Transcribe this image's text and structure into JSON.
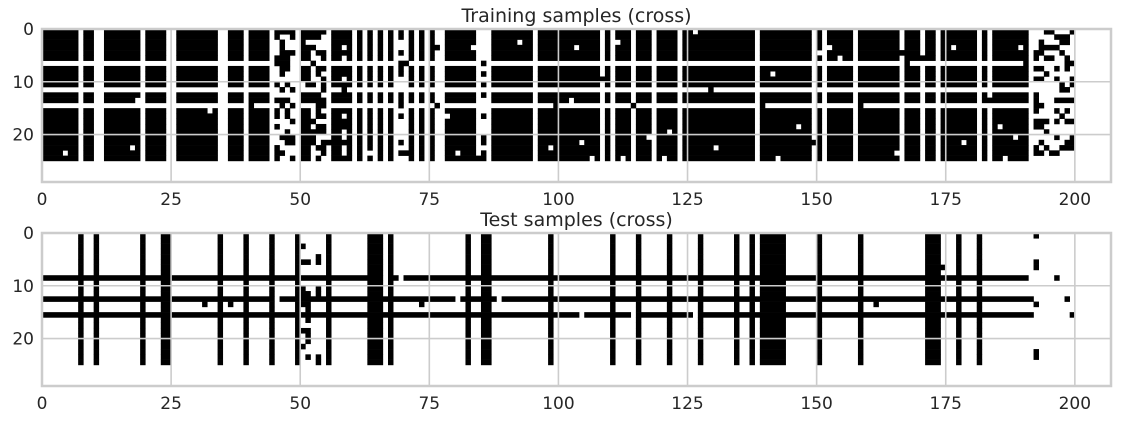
{
  "chart_data": [
    {
      "type": "heatmap",
      "title": "Training samples (cross)",
      "xlabel": "",
      "ylabel": "",
      "xlim": [
        0,
        207
      ],
      "ylim": [
        29,
        0
      ],
      "xticks": [
        0,
        25,
        50,
        75,
        100,
        125,
        150,
        175,
        200
      ],
      "yticks": [
        0,
        10,
        20
      ],
      "grid": true,
      "colormap": "binary",
      "description_rows": [
        0,
        24
      ],
      "white_columns": [
        7,
        10,
        11,
        19,
        24,
        25,
        34,
        35,
        39,
        44,
        49,
        55,
        60,
        62,
        64,
        66,
        68,
        70,
        72,
        74,
        76,
        77,
        84,
        86,
        95,
        108,
        110,
        114,
        118,
        123,
        138,
        149,
        151,
        157,
        166,
        170,
        173,
        181,
        183,
        191
      ],
      "white_rows": [
        6,
        11,
        14
      ],
      "black_rows": [],
      "sparse_columns": [
        45,
        46,
        47,
        48,
        52,
        53,
        54,
        58,
        69,
        85
      ],
      "column_values": [],
      "noise_points": [
        [
          4,
          23
        ],
        [
          17,
          22
        ],
        [
          18,
          13
        ],
        [
          32,
          15
        ],
        [
          40,
          14
        ],
        [
          46,
          4
        ],
        [
          47,
          7
        ],
        [
          50,
          10
        ],
        [
          51,
          2
        ],
        [
          55,
          21
        ],
        [
          63,
          23
        ],
        [
          69,
          20
        ],
        [
          70,
          6
        ],
        [
          70,
          23
        ],
        [
          76,
          3
        ],
        [
          76,
          14
        ],
        [
          78,
          16
        ],
        [
          80,
          23
        ],
        [
          83,
          3
        ],
        [
          84,
          24
        ],
        [
          92,
          2
        ],
        [
          98,
          22
        ],
        [
          99,
          14
        ],
        [
          102,
          13
        ],
        [
          103,
          3
        ],
        [
          104,
          21
        ],
        [
          106,
          24
        ],
        [
          108,
          9
        ],
        [
          111,
          2
        ],
        [
          112,
          24
        ],
        [
          114,
          14
        ],
        [
          117,
          20
        ],
        [
          120,
          24
        ],
        [
          121,
          19
        ],
        [
          126,
          0
        ],
        [
          129,
          11
        ],
        [
          130,
          22
        ],
        [
          139,
          14
        ],
        [
          141,
          8
        ],
        [
          142,
          24
        ],
        [
          146,
          18
        ],
        [
          149,
          21
        ],
        [
          150,
          4
        ],
        [
          152,
          3
        ],
        [
          154,
          5
        ],
        [
          158,
          14
        ],
        [
          165,
          23
        ],
        [
          166,
          4
        ],
        [
          167,
          6
        ],
        [
          170,
          5
        ],
        [
          176,
          3
        ],
        [
          178,
          21
        ],
        [
          183,
          13
        ],
        [
          185,
          18
        ],
        [
          186,
          24
        ],
        [
          188,
          20
        ],
        [
          189,
          3
        ],
        [
          190,
          6
        ]
      ],
      "right_region": {
        "x_range": [
          192,
          200
        ],
        "rows": [
          0,
          24
        ],
        "density": "sparse"
      },
      "color_scale": {
        "0": "#ffffff",
        "1": "#000000"
      }
    },
    {
      "type": "heatmap",
      "title": "Test samples (cross)",
      "xlabel": "",
      "ylabel": "",
      "xlim": [
        0,
        207
      ],
      "ylim": [
        29,
        0
      ],
      "xticks": [
        0,
        25,
        50,
        75,
        100,
        125,
        150,
        175,
        200
      ],
      "yticks": [
        0,
        10,
        20
      ],
      "grid": true,
      "colormap": "binary",
      "description_rows": [
        0,
        24
      ],
      "black_columns": [
        7,
        10,
        19,
        23,
        24,
        34,
        39,
        44,
        49,
        55,
        63,
        64,
        65,
        67,
        82,
        85,
        86,
        98,
        110,
        115,
        121,
        127,
        134,
        137,
        139,
        140,
        141,
        142,
        143,
        150,
        158,
        171,
        172,
        173,
        177,
        181
      ],
      "black_rows": [
        8,
        12,
        15
      ],
      "row_extent": [
        0,
        191
      ],
      "sparse_columns": [
        50,
        51,
        53
      ],
      "noise_points": [
        [
          31,
          13
        ],
        [
          36,
          13
        ],
        [
          45,
          12
        ],
        [
          66,
          8
        ],
        [
          69,
          8
        ],
        [
          73,
          13
        ],
        [
          80,
          12
        ],
        [
          88,
          12
        ],
        [
          104,
          15
        ],
        [
          114,
          15
        ],
        [
          126,
          15
        ],
        [
          161,
          13
        ],
        [
          174,
          6
        ],
        [
          191,
          8
        ],
        [
          192,
          0
        ],
        [
          192,
          5
        ],
        [
          192,
          6
        ],
        [
          192,
          13
        ],
        [
          192,
          22
        ],
        [
          192,
          23
        ],
        [
          196,
          8
        ],
        [
          198,
          12
        ],
        [
          199,
          15
        ]
      ],
      "color_scale": {
        "0": "#ffffff",
        "1": "#000000"
      }
    }
  ]
}
